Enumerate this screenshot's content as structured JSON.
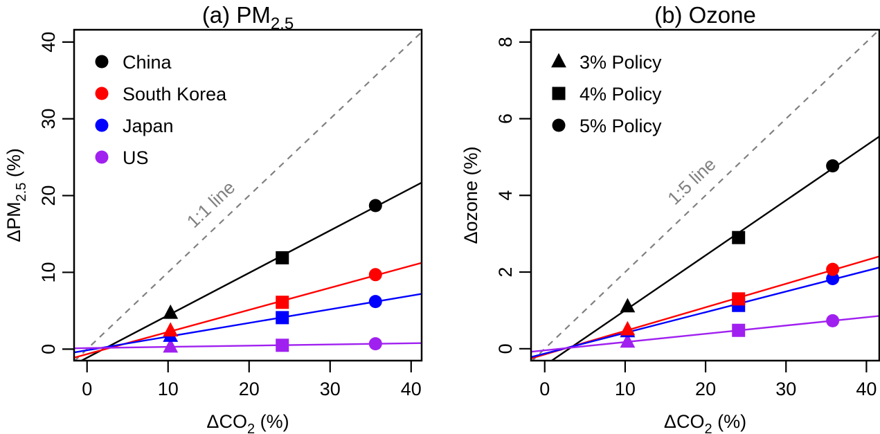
{
  "chart_data": [
    {
      "type": "scatter",
      "panel": "a",
      "title": "(a) PM",
      "title_subscript": "2.5",
      "xlabel": "ΔCO",
      "xlabel_subscript": "2",
      "xlabel_suffix": " (%)",
      "ylabel": "ΔPM",
      "ylabel_subscript": "2.5",
      "ylabel_suffix": " (%)",
      "xlim": [
        -1.6,
        41.3
      ],
      "ylim": [
        -1.5,
        41.6
      ],
      "xticks": [
        0,
        10,
        20,
        30,
        40
      ],
      "yticks": [
        0,
        10,
        20,
        30,
        40
      ],
      "grid": false,
      "reference_line": {
        "label": "1:1 line",
        "slope": 1,
        "intercept": 0,
        "style": "dashed",
        "color": "#808080"
      },
      "legend": {
        "placement": "top-left",
        "entries": [
          {
            "label": "China",
            "color": "#000000",
            "marker": "circle"
          },
          {
            "label": "South Korea",
            "color": "#ff0000",
            "marker": "circle"
          },
          {
            "label": "Japan",
            "color": "#0000ff",
            "marker": "circle"
          },
          {
            "label": "US",
            "color": "#a020f0",
            "marker": "circle"
          }
        ]
      },
      "series": [
        {
          "name": "China",
          "color": "#000000",
          "points": [
            {
              "x": 10.3,
              "y": 4.7,
              "marker": "triangle"
            },
            {
              "x": 24.1,
              "y": 11.9,
              "marker": "square"
            },
            {
              "x": 35.6,
              "y": 18.7,
              "marker": "circle"
            }
          ]
        },
        {
          "name": "South Korea",
          "color": "#ff0000",
          "points": [
            {
              "x": 10.3,
              "y": 2.4,
              "marker": "triangle"
            },
            {
              "x": 24.1,
              "y": 6.1,
              "marker": "square"
            },
            {
              "x": 35.6,
              "y": 9.7,
              "marker": "circle"
            }
          ]
        },
        {
          "name": "Japan",
          "color": "#0000ff",
          "points": [
            {
              "x": 10.3,
              "y": 1.7,
              "marker": "triangle"
            },
            {
              "x": 24.1,
              "y": 4.1,
              "marker": "square"
            },
            {
              "x": 35.6,
              "y": 6.2,
              "marker": "circle"
            }
          ]
        },
        {
          "name": "US",
          "color": "#a020f0",
          "points": [
            {
              "x": 10.3,
              "y": 0.3,
              "marker": "triangle"
            },
            {
              "x": 24.1,
              "y": 0.5,
              "marker": "square"
            },
            {
              "x": 35.6,
              "y": 0.7,
              "marker": "circle"
            }
          ]
        }
      ]
    },
    {
      "type": "scatter",
      "panel": "b",
      "title": "(b) Ozone",
      "xlabel": "ΔCO",
      "xlabel_subscript": "2",
      "xlabel_suffix": " (%)",
      "ylabel": "Δozone (%)",
      "xlim": [
        -1.7,
        41.6
      ],
      "ylim": [
        -0.31,
        8.32
      ],
      "xticks": [
        0,
        10,
        20,
        30,
        40
      ],
      "yticks": [
        0,
        2,
        4,
        6,
        8
      ],
      "grid": false,
      "reference_line": {
        "label": "1:5 line",
        "slope": 0.2,
        "intercept": 0,
        "style": "dashed",
        "color": "#808080"
      },
      "legend": {
        "placement": "top-left",
        "entries": [
          {
            "label": "3% Policy",
            "color": "#000000",
            "marker": "triangle"
          },
          {
            "label": "4% Policy",
            "color": "#000000",
            "marker": "square"
          },
          {
            "label": "5% Policy",
            "color": "#000000",
            "marker": "circle"
          }
        ]
      },
      "series": [
        {
          "name": "China",
          "color": "#000000",
          "points": [
            {
              "x": 10.3,
              "y": 1.1,
              "marker": "triangle"
            },
            {
              "x": 24.1,
              "y": 2.9,
              "marker": "square"
            },
            {
              "x": 35.8,
              "y": 4.77,
              "marker": "circle"
            }
          ]
        },
        {
          "name": "South Korea",
          "color": "#ff0000",
          "points": [
            {
              "x": 10.3,
              "y": 0.5,
              "marker": "triangle"
            },
            {
              "x": 24.1,
              "y": 1.3,
              "marker": "square"
            },
            {
              "x": 35.8,
              "y": 2.07,
              "marker": "circle"
            }
          ]
        },
        {
          "name": "Japan",
          "color": "#0000ff",
          "points": [
            {
              "x": 10.3,
              "y": 0.45,
              "marker": "triangle"
            },
            {
              "x": 24.1,
              "y": 1.13,
              "marker": "square"
            },
            {
              "x": 35.8,
              "y": 1.83,
              "marker": "circle"
            }
          ]
        },
        {
          "name": "US",
          "color": "#a020f0",
          "points": [
            {
              "x": 10.3,
              "y": 0.18,
              "marker": "triangle"
            },
            {
              "x": 24.1,
              "y": 0.48,
              "marker": "square"
            },
            {
              "x": 35.8,
              "y": 0.73,
              "marker": "circle"
            }
          ]
        }
      ]
    }
  ]
}
